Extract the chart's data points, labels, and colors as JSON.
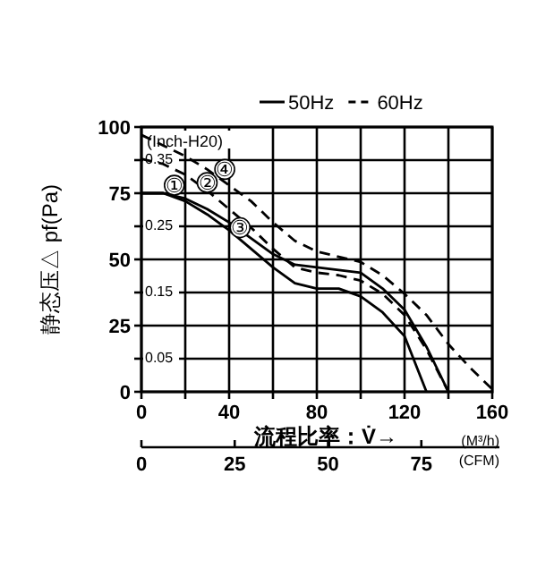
{
  "chart_data": {
    "type": "line",
    "xlabel": "流程比率：V̇→",
    "ylabel": "静态压△ pf(Pa)",
    "y2label": "(Inch-H20)",
    "x2label": "(CFM)",
    "x": [
      0,
      10,
      20,
      30,
      40,
      50,
      60,
      70,
      80,
      90,
      100,
      110,
      120,
      130,
      140,
      150,
      160
    ],
    "series": [
      {
        "name": "50Hz",
        "color": "#000000",
        "line_style": "solid",
        "values": [
          75,
          75,
          73,
          69,
          64,
          58,
          52,
          48,
          47,
          46,
          45,
          39,
          31,
          17,
          0,
          null,
          null
        ]
      },
      {
        "color": "#000000",
        "line_style": "solid",
        "values": [
          75,
          75,
          72,
          67,
          61,
          54,
          47,
          41,
          39,
          39,
          36,
          30,
          21,
          0,
          null,
          null,
          null
        ]
      },
      {
        "name": "60Hz",
        "color": "#000000",
        "line_style": "dashed",
        "values": [
          97,
          93,
          89,
          84,
          78,
          72,
          64,
          57,
          53,
          51,
          49,
          44,
          37,
          29,
          18,
          9,
          1
        ]
      },
      {
        "color": "#000000",
        "line_style": "dashed",
        "values": [
          88,
          86,
          82,
          76,
          69,
          62,
          54,
          47,
          45,
          44,
          42,
          37,
          29,
          16,
          0,
          null,
          null
        ]
      }
    ],
    "xlim": [
      0,
      160
    ],
    "xticks": [
      0,
      {
        "value": 20,
        "label": null
      },
      40,
      {
        "value": 60,
        "label": null
      },
      80,
      {
        "value": 100,
        "label": null
      },
      120,
      {
        "value": 140,
        "label": null
      },
      160
    ],
    "ylim": [
      0,
      100
    ],
    "yticks": [
      0,
      {
        "value": 12.5,
        "label": null
      },
      25,
      {
        "value": 37.5,
        "label": null
      },
      50,
      {
        "value": 62.5,
        "label": null
      },
      75,
      {
        "value": 87.5,
        "label": null
      },
      100
    ],
    "y2lim": [
      0,
      0.4
    ],
    "y2ticks": [
      0.05,
      0.15,
      0.25,
      0.35
    ],
    "x2lim": [
      0,
      94
    ],
    "x2ticks": [
      0,
      25,
      50,
      75
    ],
    "grid": true,
    "legend": "top right",
    "marker": "none",
    "annotations": [
      {
        "text": "①",
        "x": 15,
        "y": 78
      },
      {
        "text": "②",
        "x": 30,
        "y": 79
      },
      {
        "text": "③",
        "x": 45,
        "y": 62
      },
      {
        "text": "④",
        "x": 38,
        "y": 84
      },
      "(M³/h)"
    ]
  }
}
